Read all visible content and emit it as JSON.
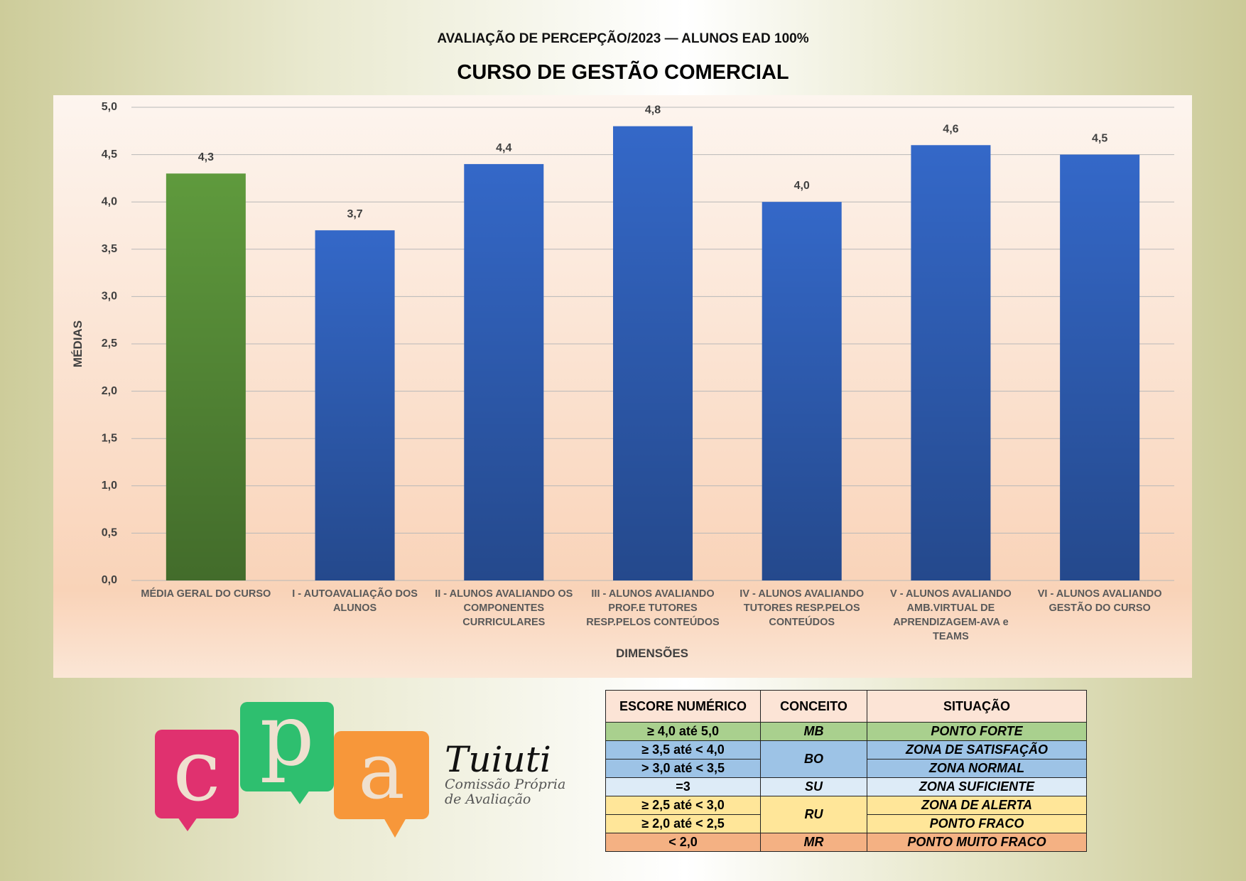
{
  "chart_data": {
    "type": "bar",
    "subtitle": "AVALIAÇÃO DE PERCEPÇÃO/2023 — ALUNOS EAD 100%",
    "title": "CURSO DE GESTÃO COMERCIAL",
    "y_label": "MÉDIAS",
    "x_label": "DIMENSÕES",
    "categories": [
      "MÉDIA GERAL DO CURSO",
      "I - AUTOAVALIAÇÃO DOS ALUNOS",
      "II - ALUNOS AVALIANDO OS COMPONENTES CURRICULARES",
      "III - ALUNOS AVALIANDO PROF.E TUTORES RESP.PELOS CONTEÚDOS",
      "IV - ALUNOS AVALIANDO TUTORES RESP.PELOS CONTEÚDOS",
      "V  - ALUNOS AVALIANDO AMB.VIRTUAL DE APRENDIZAGEM-AVA e TEAMS",
      "VI - ALUNOS AVALIANDO GESTÃO DO CURSO"
    ],
    "values": [
      4.3,
      3.7,
      4.4,
      4.8,
      4.0,
      4.6,
      4.5
    ],
    "value_labels": [
      "4,3",
      "3,7",
      "4,4",
      "4,8",
      "4,0",
      "4,6",
      "4,5"
    ],
    "colors": [
      "#5f9a3d",
      "#3468c8",
      "#3468c8",
      "#3468c8",
      "#3468c8",
      "#3468c8",
      "#3468c8"
    ],
    "ylim": [
      0,
      5
    ],
    "yticks": [
      {
        "value": 0,
        "label": "0,0"
      },
      {
        "value": 0.5,
        "label": "0,5"
      },
      {
        "value": 1,
        "label": "1,0"
      },
      {
        "value": 1.5,
        "label": "1,5"
      },
      {
        "value": 2,
        "label": "2,0"
      },
      {
        "value": 2.5,
        "label": "2,5"
      },
      {
        "value": 3,
        "label": "3,0"
      },
      {
        "value": 3.5,
        "label": "3,5"
      },
      {
        "value": 4,
        "label": "4,0"
      },
      {
        "value": 4.5,
        "label": "4,5"
      },
      {
        "value": 5,
        "label": "5,0"
      }
    ],
    "grid": true
  },
  "logo": {
    "letters": [
      "c",
      "p",
      "a"
    ],
    "name": "Tuiuti",
    "lines": [
      "Comissão Própria",
      "de Avaliação"
    ]
  },
  "table": {
    "header": [
      "ESCORE NUMÉRICO",
      "CONCEITO",
      "SITUAÇÃO"
    ],
    "groups": [
      {
        "concept": "MB",
        "color": "#a9d08e",
        "rows": [
          {
            "score": "≥ 4,0 até 5,0",
            "situation": "PONTO FORTE"
          }
        ]
      },
      {
        "concept": "BO",
        "color": "#9dc3e6",
        "rows": [
          {
            "score": "≥ 3,5 até < 4,0",
            "situation": "ZONA DE SATISFAÇÃO"
          },
          {
            "score": "> 3,0 até < 3,5",
            "situation": "ZONA NORMAL"
          }
        ]
      },
      {
        "concept": "SU",
        "color": "#ddebf7",
        "rows": [
          {
            "score": "=3",
            "situation": "ZONA SUFICIENTE"
          }
        ]
      },
      {
        "concept": "RU",
        "color": "#ffe699",
        "rows": [
          {
            "score": "≥ 2,5 até < 3,0",
            "situation": "ZONA DE ALERTA"
          },
          {
            "score": "≥ 2,0 até < 2,5",
            "situation": "PONTO FRACO"
          }
        ]
      },
      {
        "concept": "MR",
        "color": "#f4b183",
        "rows": [
          {
            "score": "< 2,0",
            "situation": "PONTO MUITO FRACO"
          }
        ]
      }
    ]
  }
}
